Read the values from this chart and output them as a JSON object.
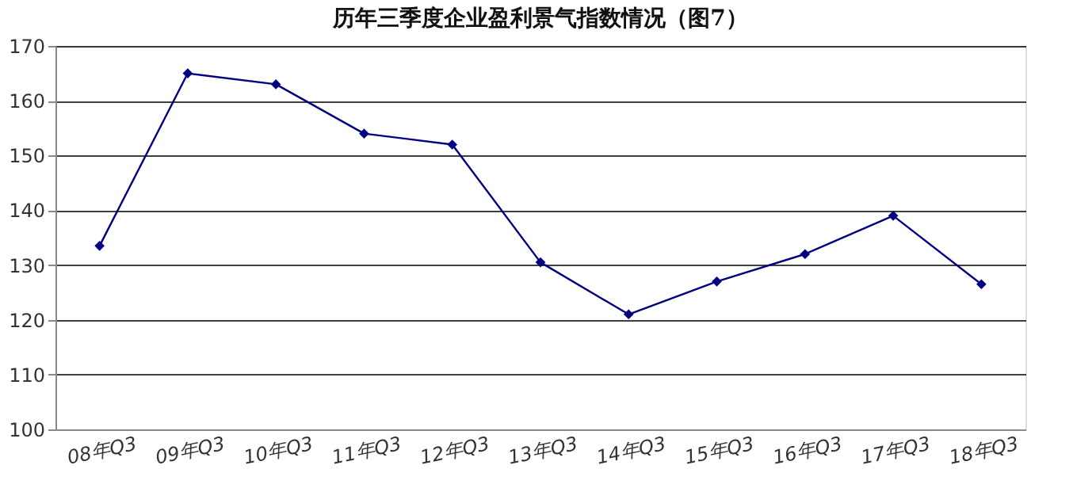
{
  "chart_data": {
    "type": "line",
    "title": "历年三季度企业盈利景气指数情况（图7）",
    "categories": [
      "08年Q3",
      "09年Q3",
      "10年Q3",
      "11年Q3",
      "12年Q3",
      "13年Q3",
      "14年Q3",
      "15年Q3",
      "16年Q3",
      "17年Q3",
      "18年Q3"
    ],
    "series": [
      {
        "color": "#000080",
        "values": [
          133.5,
          165,
          163,
          154,
          152,
          130.5,
          121,
          127,
          132,
          139,
          126.5
        ]
      }
    ],
    "ylim": [
      100,
      170
    ],
    "yticks": [
      100,
      110,
      120,
      130,
      140,
      150,
      160,
      170
    ],
    "grid": "y",
    "marker": "diamond"
  }
}
